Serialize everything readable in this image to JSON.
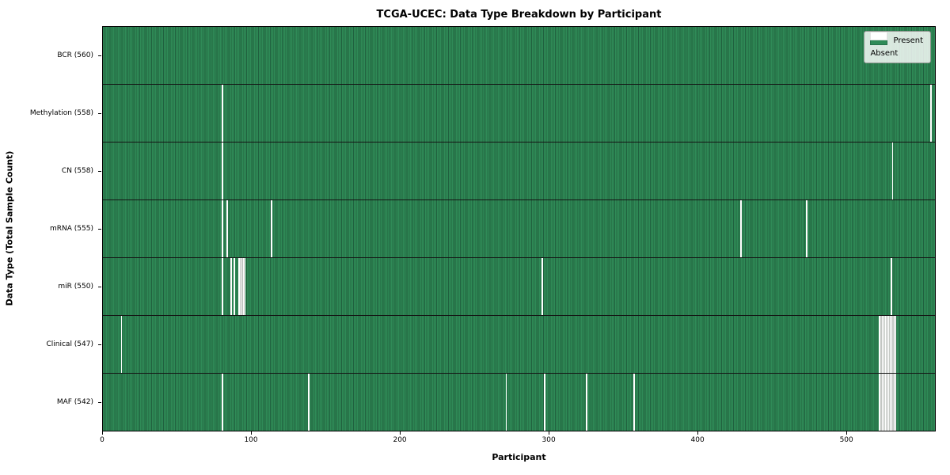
{
  "title": "TCGA-UCEC: Data Type Breakdown by Participant",
  "axes": {
    "xlabel": "Participant",
    "ylabel": "Data Type (Total Sample Count)"
  },
  "legend": {
    "items": [
      {
        "label": "Present",
        "color": "#2e8b57"
      },
      {
        "label": "Absent",
        "color": "#ffffff"
      }
    ],
    "position": "upper right"
  },
  "colors": {
    "present": "#2e8b57",
    "present_edge": "#20603e",
    "absent": "#ffffff",
    "absent_separator": "#c2c6c2",
    "plot_border": "#000000",
    "row_separator": "#141414",
    "legend_background": "rgba(255,255,255,0.82)",
    "legend_border": "#8f958f"
  },
  "chart_data": {
    "type": "heatmap",
    "title": "TCGA-UCEC: Data Type Breakdown by Participant",
    "xlabel": "Participant",
    "ylabel": "Data Type (Total Sample Count)",
    "x_range": [
      0,
      560
    ],
    "x_ticks": [
      0,
      100,
      200,
      300,
      400,
      500
    ],
    "total_participants": 560,
    "grid": false,
    "legend_entries": [
      "Present",
      "Absent"
    ],
    "legend_position": "upper right",
    "cell_values": {
      "present": 1,
      "absent": 0
    },
    "rows": [
      {
        "data_type": "BCR",
        "label": "BCR (560)",
        "present_count": 560,
        "absent_participants": []
      },
      {
        "data_type": "Methylation",
        "label": "Methylation (558)",
        "present_count": 558,
        "absent_participants": [
          80,
          557
        ]
      },
      {
        "data_type": "CN",
        "label": "CN (558)",
        "present_count": 558,
        "absent_participants": [
          80,
          531
        ]
      },
      {
        "data_type": "mRNA",
        "label": "mRNA (555)",
        "present_count": 555,
        "absent_participants": [
          80,
          83,
          113,
          429,
          473
        ]
      },
      {
        "data_type": "miR",
        "label": "miR (550)",
        "present_count": 550,
        "absent_participants": [
          80,
          86,
          88,
          91,
          92,
          93,
          94,
          95,
          295,
          530
        ]
      },
      {
        "data_type": "Clinical",
        "label": "Clinical (547)",
        "present_count": 547,
        "absent_participants": [
          12,
          522,
          523,
          524,
          525,
          526,
          527,
          528,
          529,
          530,
          531,
          532,
          533
        ]
      },
      {
        "data_type": "MAF",
        "label": "MAF (542)",
        "present_count": 542,
        "absent_participants": [
          80,
          138,
          271,
          297,
          325,
          357,
          522,
          523,
          524,
          525,
          526,
          527,
          528,
          529,
          530,
          531,
          532,
          533
        ]
      }
    ]
  }
}
